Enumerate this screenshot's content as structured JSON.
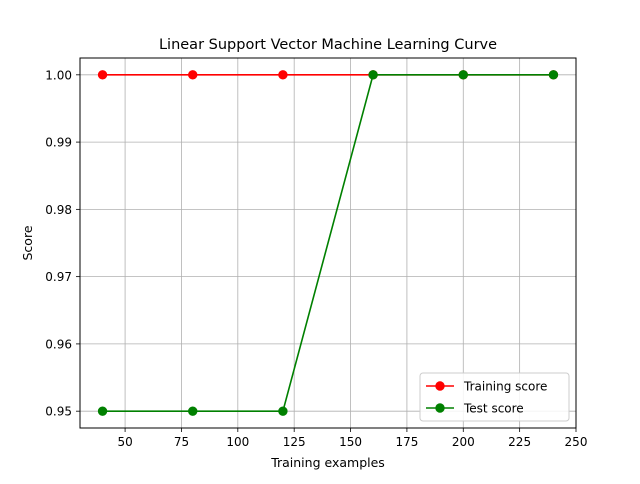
{
  "chart_data": {
    "type": "line",
    "title": "Linear Support Vector Machine Learning Curve",
    "xlabel": "Training examples",
    "ylabel": "Score",
    "xlim": [
      30,
      250
    ],
    "ylim": [
      0.9475,
      1.0025
    ],
    "xticks": [
      50,
      75,
      100,
      125,
      150,
      175,
      200,
      225,
      250
    ],
    "yticks": [
      0.95,
      0.96,
      0.97,
      0.98,
      0.99,
      1.0
    ],
    "ytick_labels": [
      "0.95",
      "0.96",
      "0.97",
      "0.98",
      "0.99",
      "1.00"
    ],
    "grid": true,
    "legend_position": "lower-right",
    "series": [
      {
        "name": "Training score",
        "color": "#ff0000",
        "marker": "circle",
        "x": [
          40,
          80,
          120,
          160,
          200,
          240
        ],
        "y": [
          1.0,
          1.0,
          1.0,
          1.0,
          1.0,
          1.0
        ]
      },
      {
        "name": "Test score",
        "color": "#008000",
        "marker": "circle",
        "x": [
          40,
          80,
          120,
          160,
          200,
          240
        ],
        "y": [
          0.95,
          0.95,
          0.95,
          1.0,
          1.0,
          1.0
        ]
      }
    ]
  }
}
